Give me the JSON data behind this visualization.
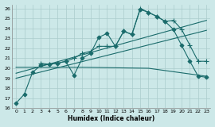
{
  "bg_color": "#cce8e8",
  "grid_color": "#aacccc",
  "line_color": "#1a6b6b",
  "xlabel": "Humidex (Indice chaleur)",
  "xlim": [
    -0.5,
    23.5
  ],
  "ylim": [
    16,
    26.4
  ],
  "xticks": [
    0,
    1,
    2,
    3,
    4,
    5,
    6,
    7,
    8,
    9,
    10,
    11,
    12,
    13,
    14,
    15,
    16,
    17,
    18,
    19,
    20,
    21,
    22,
    23
  ],
  "yticks": [
    16,
    17,
    18,
    19,
    20,
    21,
    22,
    23,
    24,
    25,
    26
  ],
  "series": [
    {
      "x": [
        0,
        1,
        2,
        3,
        4,
        5,
        6,
        7,
        8,
        9,
        10,
        11,
        12,
        13,
        14,
        15,
        16,
        17,
        18,
        19,
        20,
        21,
        22,
        23
      ],
      "y": [
        16.5,
        17.4,
        19.6,
        20.3,
        20.4,
        20.5,
        20.7,
        19.3,
        21.0,
        21.5,
        23.1,
        23.5,
        22.2,
        23.7,
        23.4,
        25.9,
        25.6,
        25.2,
        24.7,
        23.9,
        22.3,
        20.7,
        19.2,
        19.1
      ],
      "marker": "D",
      "markersize": 2.5,
      "lw": 0.8
    },
    {
      "x": [
        3,
        4,
        5,
        6,
        7,
        8,
        9,
        10,
        11,
        12,
        13,
        14,
        15,
        16,
        17,
        18,
        19,
        20,
        21,
        22,
        23
      ],
      "y": [
        20.5,
        20.4,
        20.5,
        20.7,
        21.0,
        21.5,
        21.7,
        22.2,
        22.2,
        22.2,
        23.7,
        23.4,
        26.0,
        25.6,
        25.2,
        24.7,
        24.8,
        23.9,
        22.3,
        20.7,
        20.7
      ],
      "marker": "+",
      "markersize": 4,
      "lw": 0.8
    },
    {
      "x": [
        0,
        23
      ],
      "y": [
        19.5,
        24.8
      ],
      "marker": null,
      "markersize": 0,
      "lw": 0.8
    },
    {
      "x": [
        0,
        23
      ],
      "y": [
        19.0,
        23.8
      ],
      "marker": null,
      "markersize": 0,
      "lw": 0.8
    },
    {
      "x": [
        0,
        8,
        16,
        23
      ],
      "y": [
        20.1,
        20.1,
        20.0,
        19.2
      ],
      "marker": null,
      "markersize": 0,
      "lw": 0.8
    }
  ]
}
